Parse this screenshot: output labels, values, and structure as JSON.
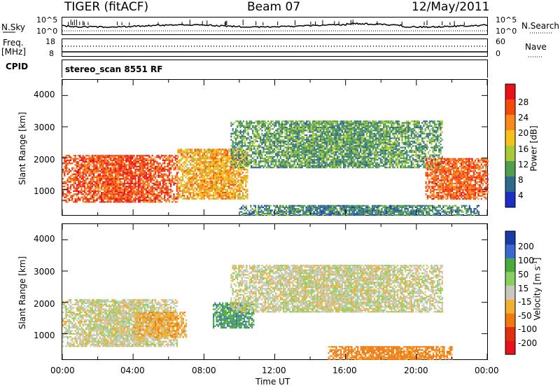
{
  "header": {
    "radar": "TIGER (fitACF)",
    "beam": "Beam 07",
    "date": "12/May/2011"
  },
  "left_labels": {
    "nsky": "N.Sky",
    "freq": "Freq.",
    "mhz": "[MHz]",
    "cpid": "CPID"
  },
  "right_labels": {
    "nsearch": "N.Search",
    "nave": "Nave"
  },
  "noise_axis": {
    "left_top": "10^5",
    "left_bottom": "10^0",
    "right_top": "10^5",
    "right_bottom": "10^0"
  },
  "freq_axis": {
    "left_top": "18",
    "left_bottom": "8",
    "right_top": "60",
    "right_bottom": "0"
  },
  "cpid_text": "stereo_scan 8551 RF",
  "power_panel": {
    "ylabel": "Slant Range [km]",
    "yticks": [
      "4000",
      "3000",
      "2000",
      "1000"
    ],
    "colorbar_label": "Power [dB]",
    "colorbar_ticks": [
      "28",
      "24",
      "20",
      "16",
      "12",
      "8",
      "4"
    ]
  },
  "velocity_panel": {
    "ylabel": "Slant Range [km]",
    "yticks": [
      "4000",
      "3000",
      "2000",
      "1000"
    ],
    "colorbar_label": "Velocity [m s",
    "colorbar_sup": "-1",
    "colorbar_suffix": "]",
    "colorbar_ticks": [
      "200",
      "100",
      "50",
      "15",
      "-15",
      "-50",
      "-100",
      "-200"
    ]
  },
  "xaxis": {
    "ticks": [
      "00:00",
      "04:00",
      "08:00",
      "12:00",
      "16:00",
      "20:00",
      "00:00"
    ],
    "label": "Time UT"
  },
  "colors": {
    "power_scale": [
      "#e8121a",
      "#f54a0c",
      "#f78a1a",
      "#f5c21a",
      "#a9c83a",
      "#4e9e4e",
      "#2f6a8e",
      "#1c2fc0"
    ],
    "velocity_scale": [
      "#1a3aa8",
      "#3a6ad0",
      "#4aaa3a",
      "#8ad060",
      "#c8c8c0",
      "#f0b030",
      "#f07a10",
      "#e03010",
      "#e8121a"
    ]
  },
  "chart_data": [
    {
      "type": "heatmap",
      "title": "Power",
      "xlabel": "Time UT",
      "ylabel": "Slant Range [km]",
      "xlim": [
        0,
        24
      ],
      "ylim": [
        180,
        4500
      ],
      "color_label": "Power [dB]",
      "color_range": [
        0,
        32
      ],
      "description_regions": [
        {
          "t_start": 0,
          "t_end": 6.5,
          "range_start": 600,
          "range_end": 2100,
          "value_db": 26
        },
        {
          "t_start": 6.5,
          "t_end": 10.5,
          "range_start": 700,
          "range_end": 2300,
          "value_db": 20
        },
        {
          "t_start": 9.5,
          "t_end": 21.5,
          "range_start": 1700,
          "range_end": 3200,
          "value_db": 10
        },
        {
          "t_start": 20.5,
          "t_end": 24,
          "range_start": 700,
          "range_end": 2000,
          "value_db": 25
        },
        {
          "t_start": 10,
          "t_end": 23.5,
          "range_start": 200,
          "range_end": 500,
          "value_db": 8
        }
      ]
    },
    {
      "type": "heatmap",
      "title": "Velocity",
      "xlabel": "Time UT",
      "ylabel": "Slant Range [km]",
      "xlim": [
        0,
        24
      ],
      "ylim": [
        180,
        4500
      ],
      "color_label": "Velocity [m s-1]",
      "color_range": [
        -250,
        250
      ],
      "description_regions": [
        {
          "t_start": 0,
          "t_end": 6.5,
          "range_start": 600,
          "range_end": 2100,
          "value_ms": 0
        },
        {
          "t_start": 4,
          "t_end": 7,
          "range_start": 900,
          "range_end": 1700,
          "value_ms": -40
        },
        {
          "t_start": 8.5,
          "t_end": 10.8,
          "range_start": 1200,
          "range_end": 2000,
          "value_ms": 60
        },
        {
          "t_start": 9.5,
          "t_end": 21.5,
          "range_start": 1700,
          "range_end": 3200,
          "value_ms": 0
        },
        {
          "t_start": 15,
          "t_end": 22,
          "range_start": 200,
          "range_end": 600,
          "value_ms": -70
        }
      ]
    }
  ]
}
